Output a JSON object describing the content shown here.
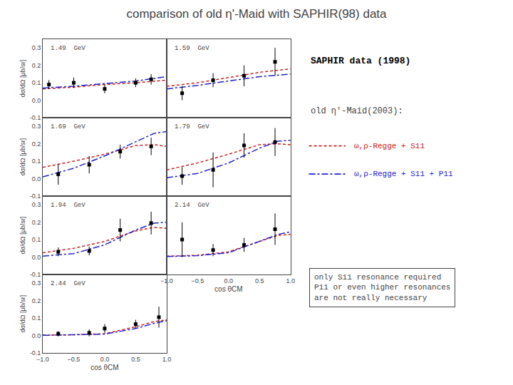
{
  "chart_data": {
    "type": "line",
    "title": "comparison of old η'-Maid with SAPHIR(98) data",
    "xlim": [
      -1.0,
      1.0
    ],
    "ylim": [
      -0.1,
      0.35
    ],
    "xticks": [
      {
        "value": -1.0,
        "label": "−1.0"
      },
      {
        "value": -0.5,
        "label": "−0.5"
      },
      {
        "value": 0.0,
        "label": "0.0"
      },
      0.5,
      {
        "value": 1.0,
        "label": "1.0"
      }
    ],
    "yticks": [
      -0.1,
      {
        "value": 0.0,
        "label": "0.0"
      },
      0.1,
      0.2,
      0.3
    ],
    "grid": false,
    "annotations": [
      "old η'-Maid(2003):",
      "only S11 resonance required\nP11 or even higher resonances\nare not really necessary"
    ],
    "panels": [
      {
        "title": "1.49  GeV",
        "tick_labels": "y",
        "ylabel": "dσ/dΩ [μb/sr]",
        "series": [
          {
            "name": "ω,ρ-Regge + S11",
            "type": "line",
            "color": "#cc2222",
            "line_style": "dashed",
            "x": [
              -1.0,
              -0.5,
              0.0,
              0.5,
              1.0
            ],
            "values": [
              0.065,
              0.075,
              0.09,
              0.1,
              0.115
            ]
          },
          {
            "name": "ω,ρ-Regge + S11 + P11",
            "type": "line",
            "color": "#2222cc",
            "line_style": "dashdot",
            "x": [
              -1.0,
              -0.5,
              0.0,
              0.5,
              1.0
            ],
            "values": [
              0.07,
              0.08,
              0.095,
              0.11,
              0.135
            ]
          },
          {
            "name": "SAPHIR data (1998)",
            "type": "scatter",
            "color": "black",
            "marker": "square",
            "x": [
              -0.9,
              -0.5,
              0.0,
              0.5,
              0.75
            ],
            "values": [
              0.09,
              0.1,
              0.065,
              0.1,
              0.12
            ],
            "errors": [
              0.025,
              0.03,
              0.025,
              0.025,
              0.03
            ]
          }
        ]
      },
      {
        "title": "1.59  GeV",
        "tick_labels": false,
        "series": [
          {
            "name": "ω,ρ-Regge + S11",
            "type": "line",
            "color": "#cc2222",
            "line_style": "dashed",
            "x": [
              -1.0,
              -0.5,
              0.0,
              0.5,
              1.0
            ],
            "values": [
              0.08,
              0.1,
              0.13,
              0.16,
              0.18
            ]
          },
          {
            "name": "ω,ρ-Regge + S11 + P11",
            "type": "line",
            "color": "#2222cc",
            "line_style": "dashdot",
            "x": [
              -1.0,
              -0.5,
              0.0,
              0.5,
              1.0
            ],
            "values": [
              0.065,
              0.085,
              0.11,
              0.135,
              0.15
            ]
          },
          {
            "name": "SAPHIR data (1998)",
            "type": "scatter",
            "color": "black",
            "marker": "square",
            "x": [
              -0.75,
              -0.25,
              0.25,
              0.75
            ],
            "values": [
              0.04,
              0.115,
              0.14,
              0.22
            ],
            "errors": [
              0.04,
              0.04,
              0.06,
              0.08
            ]
          }
        ]
      },
      {
        "title": "1.69  GeV",
        "tick_labels": "y",
        "ylabel": "dσ/dΩ [μb/sr]",
        "series": [
          {
            "name": "ω,ρ-Regge + S11",
            "type": "line",
            "color": "#cc2222",
            "line_style": "dashed",
            "x": [
              -1.0,
              -0.5,
              0.0,
              0.5,
              0.8,
              1.0
            ],
            "values": [
              0.065,
              0.1,
              0.14,
              0.19,
              0.195,
              0.185
            ]
          },
          {
            "name": "ω,ρ-Regge + S11 + P11",
            "type": "line",
            "color": "#2222cc",
            "line_style": "dashdot",
            "x": [
              -1.0,
              -0.5,
              0.0,
              0.5,
              0.8,
              1.0
            ],
            "values": [
              0.01,
              0.06,
              0.13,
              0.21,
              0.26,
              0.27
            ]
          },
          {
            "name": "SAPHIR data (1998)",
            "type": "scatter",
            "color": "black",
            "marker": "square",
            "x": [
              -0.75,
              -0.25,
              0.25,
              0.75
            ],
            "values": [
              0.025,
              0.08,
              0.155,
              0.185
            ],
            "errors": [
              0.06,
              0.05,
              0.04,
              0.05
            ]
          }
        ]
      },
      {
        "title": "1.79  GeV",
        "tick_labels": false,
        "series": [
          {
            "name": "ω,ρ-Regge + S11",
            "type": "line",
            "color": "#cc2222",
            "line_style": "dashed",
            "x": [
              -1.0,
              -0.5,
              0.0,
              0.5,
              0.8,
              1.0
            ],
            "values": [
              0.05,
              0.09,
              0.14,
              0.195,
              0.2,
              0.195
            ]
          },
          {
            "name": "ω,ρ-Regge + S11 + P11",
            "type": "line",
            "color": "#2222cc",
            "line_style": "dashdot",
            "x": [
              -1.0,
              -0.5,
              0.0,
              0.5,
              0.8,
              1.0
            ],
            "values": [
              0.005,
              0.03,
              0.09,
              0.175,
              0.215,
              0.22
            ]
          },
          {
            "name": "SAPHIR data (1998)",
            "type": "scatter",
            "color": "black",
            "marker": "square",
            "x": [
              -0.75,
              -0.25,
              0.25,
              0.75
            ],
            "values": [
              0.015,
              0.05,
              0.19,
              0.21
            ],
            "errors": [
              0.05,
              0.1,
              0.07,
              0.08
            ]
          }
        ]
      },
      {
        "title": "1.94  GeV",
        "tick_labels": "y",
        "ylabel": "dσ/dΩ [μb/sr]",
        "series": [
          {
            "name": "ω,ρ-Regge + S11",
            "type": "line",
            "color": "#cc2222",
            "line_style": "dashed",
            "x": [
              -1.0,
              -0.5,
              0.0,
              0.5,
              0.8,
              1.0
            ],
            "values": [
              0.025,
              0.05,
              0.09,
              0.15,
              0.17,
              0.165
            ]
          },
          {
            "name": "ω,ρ-Regge + S11 + P11",
            "type": "line",
            "color": "#2222cc",
            "line_style": "dashdot",
            "x": [
              -1.0,
              -0.5,
              0.0,
              0.5,
              0.8,
              1.0
            ],
            "values": [
              0.005,
              0.02,
              0.07,
              0.155,
              0.195,
              0.2
            ]
          },
          {
            "name": "SAPHIR data (1998)",
            "type": "scatter",
            "color": "black",
            "marker": "square",
            "x": [
              -0.75,
              -0.25,
              0.25,
              0.75
            ],
            "values": [
              0.03,
              0.035,
              0.155,
              0.195
            ],
            "errors": [
              0.025,
              0.025,
              0.065,
              0.065
            ]
          }
        ]
      },
      {
        "title": "2.14  GeV",
        "tick_labels": "x",
        "xlabel": "cos θCM",
        "series": [
          {
            "name": "ω,ρ-Regge + S11",
            "type": "line",
            "color": "#cc2222",
            "line_style": "dashed",
            "x": [
              -1.0,
              -0.5,
              0.0,
              0.5,
              0.8,
              1.0
            ],
            "values": [
              0.005,
              0.01,
              0.03,
              0.09,
              0.125,
              0.13
            ]
          },
          {
            "name": "ω,ρ-Regge + S11 + P11",
            "type": "line",
            "color": "#2222cc",
            "line_style": "dashdot",
            "x": [
              -1.0,
              -0.5,
              0.0,
              0.5,
              0.8,
              1.0
            ],
            "values": [
              0.003,
              0.008,
              0.025,
              0.09,
              0.13,
              0.145
            ]
          },
          {
            "name": "SAPHIR data (1998)",
            "type": "scatter",
            "color": "black",
            "marker": "square",
            "x": [
              -0.75,
              -0.25,
              0.25,
              0.75
            ],
            "values": [
              0.1,
              0.04,
              0.07,
              0.16
            ],
            "errors": [
              0.1,
              0.035,
              0.04,
              0.09
            ]
          }
        ]
      },
      {
        "title": "2.44  GeV",
        "tick_labels": true,
        "xlabel": "cos θCM",
        "ylabel": "dσ/dΩ [μb/sr]",
        "series": [
          {
            "name": "ω,ρ-Regge + S11",
            "type": "line",
            "color": "#cc2222",
            "line_style": "dashed",
            "x": [
              -1.0,
              -0.5,
              0.0,
              0.5,
              0.8,
              1.0
            ],
            "values": [
              0.002,
              0.004,
              0.01,
              0.05,
              0.08,
              0.09
            ]
          },
          {
            "name": "ω,ρ-Regge + S11 + P11",
            "type": "line",
            "color": "#2222cc",
            "line_style": "dashdot",
            "x": [
              -1.0,
              -0.5,
              0.0,
              0.5,
              0.8,
              1.0
            ],
            "values": [
              0.001,
              0.003,
              0.008,
              0.04,
              0.07,
              0.085
            ]
          },
          {
            "name": "SAPHIR data (1998)",
            "type": "scatter",
            "color": "black",
            "marker": "square",
            "x": [
              -0.75,
              -0.25,
              0.0,
              0.5,
              0.875
            ],
            "values": [
              0.01,
              0.015,
              0.04,
              0.065,
              0.105
            ],
            "errors": [
              0.015,
              0.02,
              0.025,
              0.025,
              0.06
            ]
          }
        ]
      }
    ]
  }
}
